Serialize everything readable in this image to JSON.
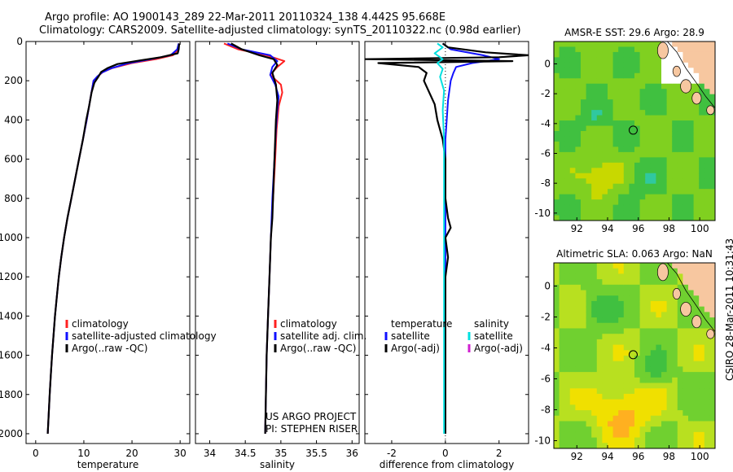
{
  "header": {
    "line1": "Argo profile: AO 1900143_289 22-Mar-2011 20110324_138 4.442S 95.668E",
    "line2": "Climatology: CARS2009. Satellite-adjusted climatology: synTS_20110322.nc (0.98d earlier)"
  },
  "colors": {
    "climatology": "#ff2020",
    "satellite": "#1010ff",
    "argo": "#000000",
    "sat_salinity": "#00e0e0",
    "argo_adj": "#d020d0"
  },
  "side_text": "CSIRO 28-Mar-2011 10:31:43",
  "chart_data": [
    {
      "type": "line",
      "title": "",
      "xlabel": "temperature",
      "ylabel": "",
      "xlim": [
        -2,
        32
      ],
      "ylim": [
        2050,
        0
      ],
      "y_reversed": true,
      "xticks": [
        0,
        10,
        20,
        30
      ],
      "yticks": [
        0,
        200,
        400,
        600,
        800,
        1000,
        1200,
        1400,
        1600,
        1800,
        2000
      ],
      "legend": [
        "climatology",
        "satellite-adjusted climatology",
        "Argo(..raw -QC)"
      ],
      "series": [
        {
          "name": "climatology",
          "color": "#ff2020",
          "points": [
            [
              29.8,
              10
            ],
            [
              29.6,
              40
            ],
            [
              28.5,
              70
            ],
            [
              25,
              90
            ],
            [
              20,
              110
            ],
            [
              16,
              135
            ],
            [
              14,
              155
            ],
            [
              13,
              175
            ],
            [
              12,
              200
            ],
            [
              11.3,
              300
            ],
            [
              10.6,
              400
            ],
            [
              9.8,
              500
            ],
            [
              9,
              600
            ],
            [
              8.2,
              700
            ],
            [
              7.4,
              800
            ],
            [
              6.6,
              900
            ],
            [
              5.9,
              1000
            ],
            [
              5.3,
              1100
            ],
            [
              4.8,
              1200
            ],
            [
              4.4,
              1300
            ],
            [
              4,
              1400
            ],
            [
              3.7,
              1500
            ],
            [
              3.4,
              1600
            ],
            [
              3.15,
              1700
            ],
            [
              2.9,
              1800
            ],
            [
              2.7,
              1900
            ],
            [
              2.5,
              2000
            ]
          ]
        },
        {
          "name": "satellite-adjusted climatology",
          "color": "#1010ff",
          "points": [
            [
              29.7,
              10
            ],
            [
              29.4,
              40
            ],
            [
              28,
              70
            ],
            [
              24,
              90
            ],
            [
              19,
              112
            ],
            [
              15.5,
              138
            ],
            [
              13.8,
              158
            ],
            [
              12.8,
              178
            ],
            [
              12,
              200
            ],
            [
              11.3,
              300
            ],
            [
              10.6,
              400
            ],
            [
              9.8,
              500
            ],
            [
              9,
              600
            ],
            [
              8.2,
              700
            ],
            [
              7.4,
              800
            ],
            [
              6.6,
              900
            ],
            [
              5.9,
              1000
            ],
            [
              5.3,
              1100
            ],
            [
              4.8,
              1200
            ],
            [
              4.4,
              1300
            ],
            [
              4,
              1400
            ],
            [
              3.7,
              1500
            ],
            [
              3.4,
              1600
            ],
            [
              3.15,
              1700
            ],
            [
              2.9,
              1800
            ],
            [
              2.7,
              1900
            ],
            [
              2.5,
              2000
            ]
          ]
        },
        {
          "name": "Argo(..raw -QC)",
          "color": "#000000",
          "points": [
            [
              29.8,
              10
            ],
            [
              29.7,
              40
            ],
            [
              29.5,
              60
            ],
            [
              26,
              80
            ],
            [
              22,
              95
            ],
            [
              17,
              115
            ],
            [
              15,
              135
            ],
            [
              13.6,
              155
            ],
            [
              13,
              180
            ],
            [
              12.2,
              210
            ],
            [
              11.6,
              260
            ],
            [
              11.1,
              330
            ],
            [
              10.5,
              400
            ],
            [
              9.8,
              500
            ],
            [
              9,
              600
            ],
            [
              8.2,
              700
            ],
            [
              7.4,
              800
            ],
            [
              6.6,
              900
            ],
            [
              5.9,
              1000
            ],
            [
              5.3,
              1100
            ],
            [
              4.8,
              1200
            ],
            [
              4.4,
              1300
            ],
            [
              4,
              1400
            ],
            [
              3.7,
              1500
            ],
            [
              3.4,
              1600
            ],
            [
              3.15,
              1700
            ],
            [
              2.9,
              1800
            ],
            [
              2.7,
              1900
            ],
            [
              2.5,
              2000
            ]
          ]
        }
      ]
    },
    {
      "type": "line",
      "title": "",
      "xlabel": "salinity",
      "xlim": [
        33.8,
        36.1
      ],
      "ylim": [
        2050,
        0
      ],
      "y_reversed": true,
      "xticks": [
        34,
        34.5,
        35,
        35.5,
        36
      ],
      "legend": [
        "climatology",
        "satellite adj. clim.",
        "Argo(..raw -QC)"
      ],
      "annotations": [
        "US ARGO PROJECT",
        "PI: STEPHEN RISER"
      ],
      "series": [
        {
          "name": "climatology",
          "color": "#ff2020",
          "points": [
            [
              34.2,
              10
            ],
            [
              34.4,
              40
            ],
            [
              34.8,
              70
            ],
            [
              35.05,
              100
            ],
            [
              34.95,
              130
            ],
            [
              34.85,
              170
            ],
            [
              35.0,
              220
            ],
            [
              35.02,
              260
            ],
            [
              34.97,
              330
            ],
            [
              34.94,
              450
            ],
            [
              34.92,
              600
            ],
            [
              34.89,
              800
            ],
            [
              34.86,
              1000
            ],
            [
              34.84,
              1200
            ],
            [
              34.82,
              1400
            ],
            [
              34.8,
              1600
            ],
            [
              34.79,
              1800
            ],
            [
              34.78,
              2000
            ]
          ]
        },
        {
          "name": "satellite adj. clim.",
          "color": "#1010ff",
          "points": [
            [
              34.25,
              10
            ],
            [
              34.45,
              40
            ],
            [
              34.85,
              70
            ],
            [
              34.95,
              100
            ],
            [
              34.88,
              130
            ],
            [
              34.85,
              170
            ],
            [
              34.92,
              220
            ],
            [
              34.97,
              280
            ],
            [
              34.95,
              350
            ],
            [
              34.93,
              450
            ],
            [
              34.91,
              600
            ],
            [
              34.88,
              800
            ],
            [
              34.86,
              1000
            ],
            [
              34.84,
              1200
            ],
            [
              34.82,
              1400
            ],
            [
              34.8,
              1600
            ],
            [
              34.79,
              1800
            ],
            [
              34.78,
              2000
            ]
          ]
        },
        {
          "name": "Argo(..raw -QC)",
          "color": "#000000",
          "points": [
            [
              34.3,
              10
            ],
            [
              34.45,
              40
            ],
            [
              34.7,
              70
            ],
            [
              34.9,
              90
            ],
            [
              34.95,
              120
            ],
            [
              34.88,
              160
            ],
            [
              34.93,
              220
            ],
            [
              34.95,
              300
            ],
            [
              34.93,
              400
            ],
            [
              34.92,
              500
            ],
            [
              34.9,
              700
            ],
            [
              34.88,
              900
            ],
            [
              34.86,
              1000
            ],
            [
              34.84,
              1200
            ],
            [
              34.82,
              1400
            ],
            [
              34.8,
              1600
            ],
            [
              34.79,
              1800
            ],
            [
              34.78,
              2000
            ]
          ]
        }
      ]
    },
    {
      "type": "line",
      "title": "",
      "xlabel": "difference from climatology",
      "xlim": [
        -3,
        3.1
      ],
      "ylim": [
        2050,
        0
      ],
      "y_reversed": true,
      "xticks": [
        -2,
        0,
        2
      ],
      "legend_left_title": "temperature",
      "legend_right_title": "salinity",
      "legend": [
        "satellite",
        "Argo(-adj)",
        "satellite",
        "Argo(-adj)"
      ],
      "series": [
        {
          "name": "temperature satellite",
          "color": "#1010ff",
          "points": [
            [
              -0.1,
              10
            ],
            [
              0.2,
              40
            ],
            [
              1.4,
              70
            ],
            [
              2.0,
              90
            ],
            [
              1.0,
              110
            ],
            [
              0.4,
              130
            ],
            [
              0.3,
              160
            ],
            [
              0.2,
              200
            ],
            [
              0.1,
              300
            ],
            [
              0.05,
              400
            ],
            [
              0.0,
              500
            ],
            [
              0.0,
              700
            ],
            [
              0.0,
              1000
            ],
            [
              0.0,
              1400
            ],
            [
              0.0,
              2000
            ]
          ]
        },
        {
          "name": "temperature Argo(-adj)",
          "color": "#000000",
          "points": [
            [
              -0.1,
              10
            ],
            [
              0.1,
              30
            ],
            [
              1.5,
              55
            ],
            [
              3.1,
              70
            ],
            [
              2.0,
              80
            ],
            [
              -3.0,
              90
            ],
            [
              2.5,
              100
            ],
            [
              -2.5,
              110
            ],
            [
              -1.0,
              130
            ],
            [
              -0.7,
              160
            ],
            [
              -0.8,
              200
            ],
            [
              -0.6,
              260
            ],
            [
              -0.4,
              320
            ],
            [
              -0.3,
              400
            ],
            [
              -0.1,
              500
            ],
            [
              0.0,
              600
            ],
            [
              0.0,
              800
            ],
            [
              0.1,
              900
            ],
            [
              0.2,
              950
            ],
            [
              0.0,
              1000
            ],
            [
              0.1,
              1100
            ],
            [
              0.0,
              1200
            ],
            [
              0.0,
              1400
            ],
            [
              0.0,
              1700
            ],
            [
              0.0,
              2000
            ]
          ]
        },
        {
          "name": "salinity satellite",
          "color": "#00e0e0",
          "points": [
            [
              -0.3,
              10
            ],
            [
              -0.1,
              30
            ],
            [
              -0.4,
              60
            ],
            [
              -0.1,
              90
            ],
            [
              -0.3,
              110
            ],
            [
              -0.1,
              140
            ],
            [
              -0.2,
              180
            ],
            [
              -0.05,
              250
            ],
            [
              -0.1,
              350
            ],
            [
              -0.05,
              500
            ],
            [
              -0.05,
              800
            ],
            [
              -0.05,
              1200
            ],
            [
              -0.05,
              1600
            ],
            [
              -0.05,
              2000
            ]
          ]
        }
      ]
    },
    {
      "type": "heatmap",
      "title": "AMSR-E SST: 29.6 Argo: 28.9",
      "xlim": [
        90.5,
        101
      ],
      "ylim": [
        -10.5,
        1.5
      ],
      "xticks": [
        92,
        94,
        96,
        98,
        100
      ],
      "yticks": [
        0,
        -2,
        -4,
        -6,
        -8,
        -10
      ],
      "marker": {
        "lon": 95.668,
        "lat": -4.442
      }
    },
    {
      "type": "heatmap",
      "title": "Altimetric SLA: 0.063 Argo: NaN",
      "xlim": [
        90.5,
        101
      ],
      "ylim": [
        -10.5,
        1.5
      ],
      "xticks": [
        92,
        94,
        96,
        98,
        100
      ],
      "yticks": [
        0,
        -2,
        -4,
        -6,
        -8,
        -10
      ],
      "marker": {
        "lon": 95.668,
        "lat": -4.442
      }
    }
  ]
}
